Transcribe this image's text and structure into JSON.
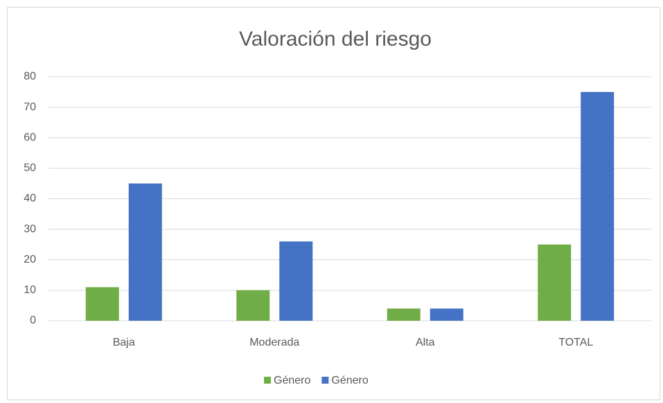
{
  "chart_data": {
    "type": "bar",
    "title": "Valoración del riesgo",
    "categories": [
      "Baja",
      "Moderada",
      "Alta",
      "TOTAL"
    ],
    "series": [
      {
        "name": "Género",
        "color": "#70ad47",
        "values": [
          11,
          10,
          4,
          25
        ]
      },
      {
        "name": "Género",
        "color": "#4472c4",
        "values": [
          45,
          26,
          4,
          75
        ]
      }
    ],
    "ylim": [
      0,
      80
    ],
    "yticks": [
      0,
      10,
      20,
      30,
      40,
      50,
      60,
      70,
      80
    ],
    "grid": true,
    "legend": "bottom"
  }
}
